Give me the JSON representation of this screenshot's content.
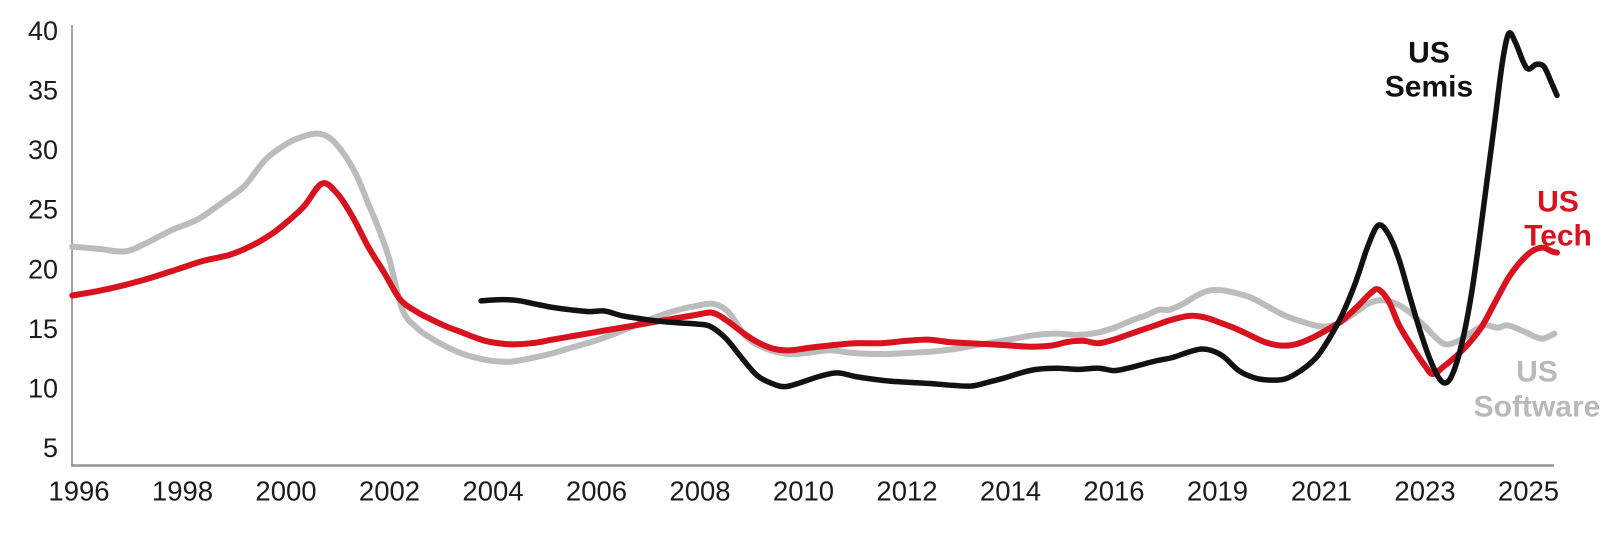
{
  "chart_data": {
    "type": "line",
    "title": "",
    "xlabel": "",
    "ylabel": "",
    "grid": false,
    "legend_position": "inline-labels",
    "axis_color": "#949494",
    "tick_color": "#1c1c1c",
    "y_axis": {
      "min": 5,
      "max": 40,
      "ticks": [
        5,
        10,
        15,
        20,
        25,
        30,
        35,
        40
      ]
    },
    "x_axis": {
      "tick_labels": [
        "1996",
        "1998",
        "2000",
        "2002",
        "2004",
        "2006",
        "2008",
        "2010",
        "2012",
        "2014",
        "2016",
        "2019",
        "2021",
        "2023",
        "2025"
      ],
      "tick_years": [
        1996,
        1998,
        2000,
        2002,
        2004,
        2006,
        2008,
        2010,
        2012,
        2014,
        2016,
        2019,
        2021,
        2023,
        2025
      ]
    },
    "series": [
      {
        "name": "US Software",
        "color": "#bcbcbc",
        "width": 6,
        "points": [
          [
            1995.87,
            21.9
          ],
          [
            1996.4,
            21.7
          ],
          [
            1996.9,
            21.5
          ],
          [
            1997.3,
            22.2
          ],
          [
            1997.8,
            23.3
          ],
          [
            1998.3,
            24.2
          ],
          [
            1998.8,
            25.7
          ],
          [
            1999.2,
            27.0
          ],
          [
            1999.6,
            29.2
          ],
          [
            2000.0,
            30.5
          ],
          [
            2000.3,
            31.1
          ],
          [
            2000.6,
            31.4
          ],
          [
            2000.85,
            31.0
          ],
          [
            2001.1,
            29.8
          ],
          [
            2001.35,
            28.0
          ],
          [
            2001.6,
            25.4
          ],
          [
            2001.8,
            23.3
          ],
          [
            2002.0,
            20.8
          ],
          [
            2002.25,
            16.6
          ],
          [
            2002.55,
            15.0
          ],
          [
            2002.85,
            14.1
          ],
          [
            2003.15,
            13.4
          ],
          [
            2003.45,
            12.85
          ],
          [
            2003.75,
            12.5
          ],
          [
            2004.0,
            12.3
          ],
          [
            2004.35,
            12.25
          ],
          [
            2004.7,
            12.5
          ],
          [
            2005.1,
            12.9
          ],
          [
            2005.5,
            13.4
          ],
          [
            2005.9,
            13.9
          ],
          [
            2006.3,
            14.5
          ],
          [
            2006.7,
            15.2
          ],
          [
            2007.1,
            15.9
          ],
          [
            2007.5,
            16.5
          ],
          [
            2007.9,
            16.9
          ],
          [
            2008.25,
            17.1
          ],
          [
            2008.55,
            16.4
          ],
          [
            2008.9,
            14.3
          ],
          [
            2009.3,
            13.3
          ],
          [
            2009.7,
            12.9
          ],
          [
            2010.1,
            13.0
          ],
          [
            2010.5,
            13.2
          ],
          [
            2010.9,
            13.0
          ],
          [
            2011.3,
            12.9
          ],
          [
            2011.7,
            12.9
          ],
          [
            2012.1,
            13.0
          ],
          [
            2012.5,
            13.1
          ],
          [
            2012.9,
            13.3
          ],
          [
            2013.3,
            13.6
          ],
          [
            2013.7,
            13.9
          ],
          [
            2014.1,
            14.2
          ],
          [
            2014.5,
            14.5
          ],
          [
            2014.9,
            14.6
          ],
          [
            2015.3,
            14.5
          ],
          [
            2015.7,
            14.7
          ],
          [
            2016.1,
            15.2
          ],
          [
            2016.5,
            15.7
          ],
          [
            2016.9,
            16.1
          ],
          [
            2017.3,
            16.6
          ],
          [
            2017.6,
            16.6
          ],
          [
            2018.0,
            17.1
          ],
          [
            2018.4,
            17.8
          ],
          [
            2018.75,
            18.2
          ],
          [
            2019.05,
            18.25
          ],
          [
            2019.35,
            18.0
          ],
          [
            2019.65,
            17.6
          ],
          [
            2019.95,
            16.9
          ],
          [
            2020.3,
            16.1
          ],
          [
            2020.7,
            15.5
          ],
          [
            2021.0,
            15.2
          ],
          [
            2021.3,
            15.4
          ],
          [
            2021.6,
            16.2
          ],
          [
            2021.9,
            17.1
          ],
          [
            2022.15,
            17.4
          ],
          [
            2022.45,
            17.1
          ],
          [
            2022.7,
            16.4
          ],
          [
            2023.0,
            15.2
          ],
          [
            2023.2,
            14.3
          ],
          [
            2023.4,
            13.7
          ],
          [
            2023.65,
            14.0
          ],
          [
            2023.9,
            14.7
          ],
          [
            2024.15,
            15.3
          ],
          [
            2024.4,
            15.1
          ],
          [
            2024.6,
            15.3
          ],
          [
            2024.9,
            14.8
          ],
          [
            2025.15,
            14.3
          ],
          [
            2025.3,
            14.2
          ],
          [
            2025.5,
            14.6
          ]
        ]
      },
      {
        "name": "US Tech",
        "color": "#d9121f",
        "width": 6,
        "points": [
          [
            1995.87,
            17.8
          ],
          [
            1996.4,
            18.2
          ],
          [
            1996.9,
            18.7
          ],
          [
            1997.4,
            19.3
          ],
          [
            1997.9,
            20.0
          ],
          [
            1998.4,
            20.7
          ],
          [
            1998.9,
            21.2
          ],
          [
            1999.3,
            21.9
          ],
          [
            1999.7,
            22.9
          ],
          [
            2000.0,
            23.9
          ],
          [
            2000.35,
            25.3
          ],
          [
            2000.7,
            27.2
          ],
          [
            2001.0,
            26.3
          ],
          [
            2001.3,
            24.3
          ],
          [
            2001.6,
            21.8
          ],
          [
            2001.9,
            19.7
          ],
          [
            2002.2,
            17.5
          ],
          [
            2002.5,
            16.5
          ],
          [
            2002.8,
            15.8
          ],
          [
            2003.1,
            15.2
          ],
          [
            2003.4,
            14.7
          ],
          [
            2003.7,
            14.2
          ],
          [
            2003.95,
            13.9
          ],
          [
            2004.35,
            13.7
          ],
          [
            2004.75,
            13.8
          ],
          [
            2005.15,
            14.1
          ],
          [
            2005.55,
            14.4
          ],
          [
            2005.95,
            14.7
          ],
          [
            2006.35,
            15.0
          ],
          [
            2006.75,
            15.3
          ],
          [
            2007.15,
            15.6
          ],
          [
            2007.55,
            15.9
          ],
          [
            2007.95,
            16.2
          ],
          [
            2008.25,
            16.35
          ],
          [
            2008.55,
            15.6
          ],
          [
            2008.85,
            14.6
          ],
          [
            2009.15,
            13.8
          ],
          [
            2009.45,
            13.3
          ],
          [
            2009.75,
            13.2
          ],
          [
            2010.1,
            13.4
          ],
          [
            2010.5,
            13.6
          ],
          [
            2011.0,
            13.8
          ],
          [
            2011.5,
            13.8
          ],
          [
            2012.0,
            14.0
          ],
          [
            2012.4,
            14.1
          ],
          [
            2012.8,
            13.9
          ],
          [
            2013.2,
            13.8
          ],
          [
            2013.6,
            13.7
          ],
          [
            2014.0,
            13.6
          ],
          [
            2014.4,
            13.5
          ],
          [
            2014.8,
            13.6
          ],
          [
            2015.1,
            13.9
          ],
          [
            2015.4,
            14.0
          ],
          [
            2015.7,
            13.8
          ],
          [
            2016.0,
            14.1
          ],
          [
            2016.4,
            14.5
          ],
          [
            2016.8,
            14.9
          ],
          [
            2017.2,
            15.3
          ],
          [
            2017.6,
            15.7
          ],
          [
            2018.0,
            16.0
          ],
          [
            2018.3,
            16.1
          ],
          [
            2018.7,
            15.9
          ],
          [
            2019.0,
            15.6
          ],
          [
            2019.3,
            15.1
          ],
          [
            2019.6,
            14.5
          ],
          [
            2019.9,
            13.9
          ],
          [
            2020.2,
            13.6
          ],
          [
            2020.5,
            13.7
          ],
          [
            2020.8,
            14.2
          ],
          [
            2021.1,
            14.9
          ],
          [
            2021.4,
            15.7
          ],
          [
            2021.7,
            16.9
          ],
          [
            2021.95,
            18.0
          ],
          [
            2022.1,
            18.3
          ],
          [
            2022.3,
            17.3
          ],
          [
            2022.5,
            15.3
          ],
          [
            2022.75,
            13.5
          ],
          [
            2023.0,
            11.9
          ],
          [
            2023.15,
            11.2
          ],
          [
            2023.35,
            11.8
          ],
          [
            2023.6,
            12.7
          ],
          [
            2023.85,
            13.8
          ],
          [
            2024.1,
            15.2
          ],
          [
            2024.35,
            17.2
          ],
          [
            2024.6,
            19.2
          ],
          [
            2024.8,
            20.4
          ],
          [
            2025.0,
            21.3
          ],
          [
            2025.15,
            21.7
          ],
          [
            2025.3,
            21.8
          ],
          [
            2025.45,
            21.5
          ],
          [
            2025.55,
            21.4
          ]
        ]
      },
      {
        "name": "US Semis",
        "color": "#121212",
        "width": 5.5,
        "points": [
          [
            2003.77,
            17.35
          ],
          [
            2004.1,
            17.45
          ],
          [
            2004.45,
            17.4
          ],
          [
            2004.8,
            17.1
          ],
          [
            2005.15,
            16.8
          ],
          [
            2005.5,
            16.6
          ],
          [
            2005.85,
            16.45
          ],
          [
            2006.15,
            16.5
          ],
          [
            2006.5,
            16.1
          ],
          [
            2006.85,
            15.85
          ],
          [
            2007.2,
            15.65
          ],
          [
            2007.6,
            15.5
          ],
          [
            2007.95,
            15.4
          ],
          [
            2008.2,
            15.2
          ],
          [
            2008.5,
            14.2
          ],
          [
            2008.8,
            12.6
          ],
          [
            2009.1,
            11.1
          ],
          [
            2009.4,
            10.4
          ],
          [
            2009.65,
            10.15
          ],
          [
            2009.95,
            10.5
          ],
          [
            2010.3,
            11.0
          ],
          [
            2010.65,
            11.3
          ],
          [
            2011.0,
            11.0
          ],
          [
            2011.3,
            10.8
          ],
          [
            2011.7,
            10.6
          ],
          [
            2012.1,
            10.5
          ],
          [
            2012.5,
            10.4
          ],
          [
            2012.9,
            10.25
          ],
          [
            2013.25,
            10.2
          ],
          [
            2013.55,
            10.5
          ],
          [
            2013.9,
            10.9
          ],
          [
            2014.2,
            11.3
          ],
          [
            2014.5,
            11.6
          ],
          [
            2014.9,
            11.7
          ],
          [
            2015.3,
            11.6
          ],
          [
            2015.7,
            11.7
          ],
          [
            2016.0,
            11.5
          ],
          [
            2016.4,
            11.7
          ],
          [
            2016.8,
            12.0
          ],
          [
            2017.2,
            12.3
          ],
          [
            2017.7,
            12.6
          ],
          [
            2018.1,
            13.0
          ],
          [
            2018.5,
            13.3
          ],
          [
            2018.8,
            13.2
          ],
          [
            2019.1,
            12.7
          ],
          [
            2019.4,
            11.5
          ],
          [
            2019.7,
            10.9
          ],
          [
            2020.0,
            10.7
          ],
          [
            2020.3,
            10.8
          ],
          [
            2020.6,
            11.5
          ],
          [
            2020.9,
            12.6
          ],
          [
            2021.15,
            14.2
          ],
          [
            2021.4,
            16.2
          ],
          [
            2021.65,
            18.8
          ],
          [
            2021.9,
            22.0
          ],
          [
            2022.1,
            23.7
          ],
          [
            2022.3,
            22.9
          ],
          [
            2022.5,
            20.8
          ],
          [
            2022.7,
            17.8
          ],
          [
            2022.9,
            14.9
          ],
          [
            2023.1,
            12.4
          ],
          [
            2023.3,
            10.7
          ],
          [
            2023.45,
            10.6
          ],
          [
            2023.6,
            12.0
          ],
          [
            2023.75,
            14.5
          ],
          [
            2023.9,
            18.0
          ],
          [
            2024.05,
            22.5
          ],
          [
            2024.2,
            27.5
          ],
          [
            2024.35,
            32.5
          ],
          [
            2024.5,
            37.5
          ],
          [
            2024.62,
            39.8
          ],
          [
            2024.75,
            39.0
          ],
          [
            2024.9,
            37.4
          ],
          [
            2025.0,
            36.8
          ],
          [
            2025.15,
            37.2
          ],
          [
            2025.3,
            37.0
          ],
          [
            2025.45,
            35.6
          ],
          [
            2025.55,
            34.6
          ]
        ]
      }
    ],
    "annotations": [
      {
        "id": "us-semis-label",
        "lines": [
          "US",
          "Semis"
        ],
        "color": "#121212",
        "x": 1429,
        "y": 53,
        "line_gap": 34
      },
      {
        "id": "us-tech-label",
        "lines": [
          "US",
          "Tech"
        ],
        "color": "#d9121f",
        "x": 1558,
        "y": 202,
        "line_gap": 34
      },
      {
        "id": "us-software-label",
        "lines": [
          "US",
          "Software"
        ],
        "color": "#b9b9b9",
        "x": 1537,
        "y": 372,
        "line_gap": 35
      }
    ]
  }
}
